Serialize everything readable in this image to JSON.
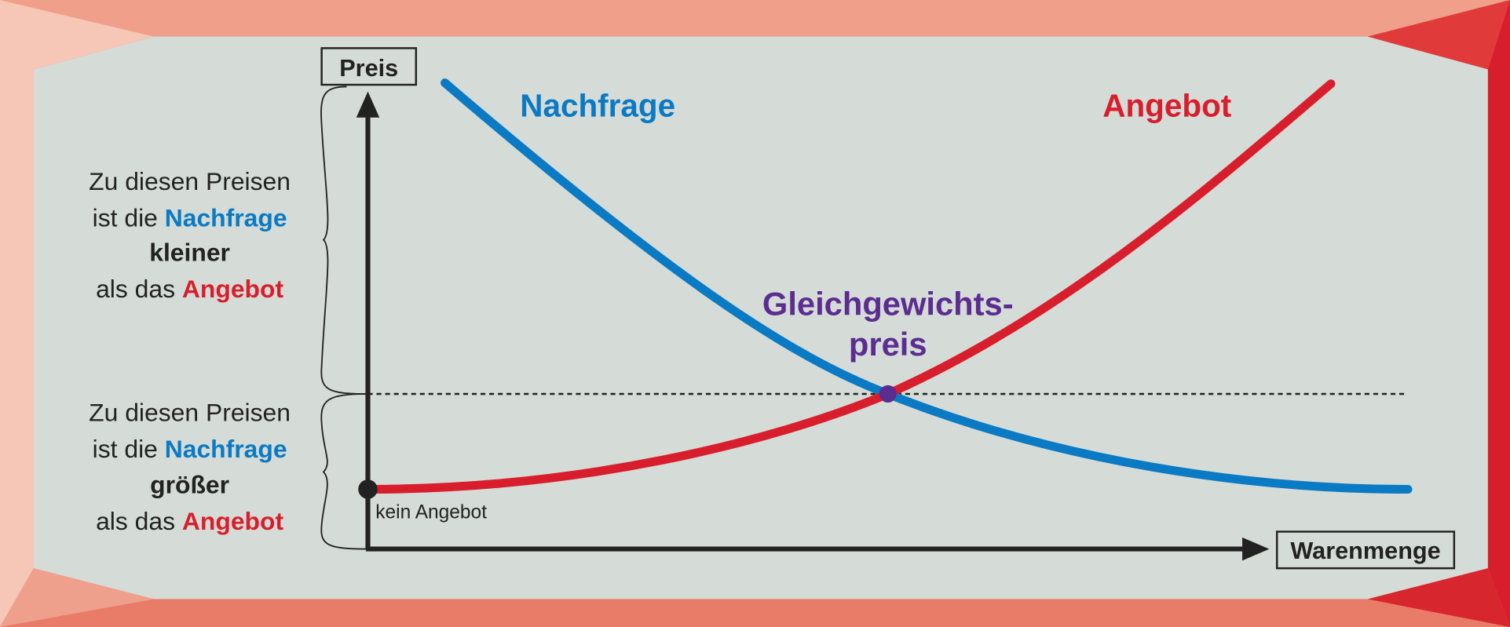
{
  "axes": {
    "y_label": "Preis",
    "x_label": "Warenmenge"
  },
  "curves": {
    "demand": "Nachfrage",
    "supply": "Angebot"
  },
  "equilibrium": {
    "line1": "Gleichgewichts-",
    "line2": "preis"
  },
  "annotation": "kein Angebot",
  "upper_note": {
    "line1": "Zu diesen Preisen",
    "line2_prefix": "ist die",
    "line2_term": "Nachfrage",
    "line3": "kleiner",
    "line4_prefix": "als das",
    "line4_term": "Angebot"
  },
  "lower_note": {
    "line1": "Zu diesen Preisen",
    "line2_prefix": "ist die",
    "line2_term": "Nachfrage",
    "line3": "größer",
    "line4_prefix": "als das",
    "line4_term": "Angebot"
  }
}
